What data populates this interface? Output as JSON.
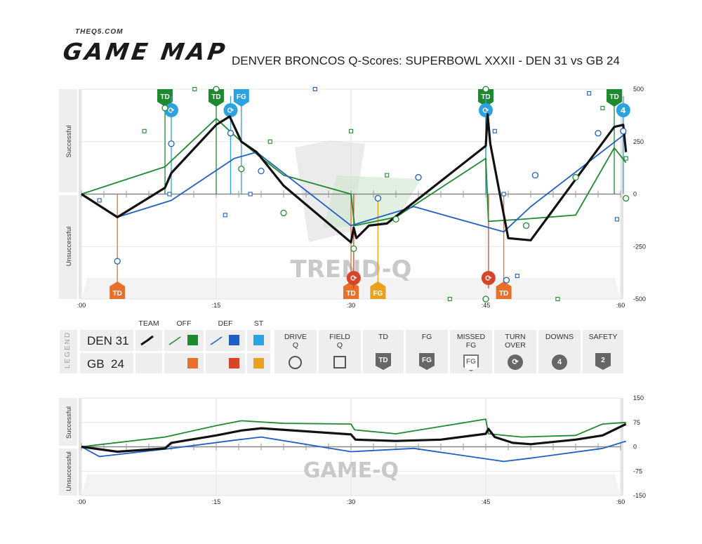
{
  "header": {
    "site": "THEQ5.COM",
    "logo": "GAME MAP",
    "title": "DENVER BRONCOS Q-Scores: SUPERBOWL XXXII - DEN 31 vs GB 24"
  },
  "colors": {
    "team": "#111111",
    "off": "#1e8a2e",
    "def": "#1f5fc4",
    "st": "#2aa3e0",
    "opp_off": "#e8702a",
    "opp_def": "#d6452a",
    "opp_st": "#e8a21c"
  },
  "chart_data": [
    {
      "type": "line",
      "watermark": "TREND-Q",
      "ylabel_top": "Successful",
      "ylabel_bottom": "Unsuccessful",
      "xlim": [
        0,
        60
      ],
      "ylim": [
        -500,
        500
      ],
      "x_ticks": [
        ":00",
        ":15",
        ":30",
        ":45",
        ":60"
      ],
      "y_ticks": [
        500,
        250,
        0,
        -250,
        -500
      ],
      "series": [
        {
          "name": "TEAM",
          "role": "team",
          "points": [
            [
              0,
              0
            ],
            [
              4,
              -110
            ],
            [
              9.3,
              30
            ],
            [
              10,
              100
            ],
            [
              15,
              330
            ],
            [
              16.5,
              370
            ],
            [
              17.8,
              250
            ],
            [
              19.5,
              200
            ],
            [
              22.5,
              40
            ],
            [
              30,
              -230
            ],
            [
              30.3,
              -160
            ],
            [
              30.6,
              -210
            ],
            [
              32,
              -150
            ],
            [
              34,
              -140
            ],
            [
              45,
              230
            ],
            [
              45.2,
              380
            ],
            [
              45.5,
              240
            ],
            [
              47.5,
              -210
            ],
            [
              50,
              -220
            ],
            [
              59.3,
              320
            ],
            [
              60.3,
              330
            ],
            [
              60.6,
              200
            ]
          ]
        },
        {
          "name": "OFF",
          "role": "off",
          "points": [
            [
              0,
              0
            ],
            [
              9.3,
              130
            ],
            [
              15,
              360
            ],
            [
              17.8,
              250
            ],
            [
              19.5,
              190
            ],
            [
              22.5,
              90
            ],
            [
              30,
              0
            ],
            [
              30.4,
              -150
            ],
            [
              35,
              -110
            ],
            [
              45,
              170
            ],
            [
              45.3,
              -130
            ],
            [
              49,
              -120
            ],
            [
              55,
              -100
            ],
            [
              59.3,
              220
            ],
            [
              60.6,
              150
            ]
          ]
        },
        {
          "name": "DEF",
          "role": "def",
          "points": [
            [
              0,
              0
            ],
            [
              4,
              -110
            ],
            [
              10,
              -30
            ],
            [
              17,
              170
            ],
            [
              19.5,
              200
            ],
            [
              30,
              -150
            ],
            [
              37,
              -60
            ],
            [
              47,
              -180
            ],
            [
              50,
              -60
            ],
            [
              60.6,
              290
            ]
          ]
        }
      ],
      "markers": [
        {
          "x": 9.3,
          "y": 410,
          "shape": "circle",
          "color": "off"
        },
        {
          "x": 10,
          "y": 240,
          "shape": "circle",
          "color": "def"
        },
        {
          "x": 7,
          "y": 300,
          "shape": "square",
          "color": "off"
        },
        {
          "x": 9.8,
          "y": 0,
          "shape": "square",
          "color": "def"
        },
        {
          "x": 12.6,
          "y": 500,
          "shape": "square",
          "color": "off"
        },
        {
          "x": 15,
          "y": 500,
          "shape": "circle",
          "color": "off"
        },
        {
          "x": 16.6,
          "y": 290,
          "shape": "circle",
          "color": "def"
        },
        {
          "x": 17.8,
          "y": 120,
          "shape": "circle",
          "color": "off"
        },
        {
          "x": 20,
          "y": 110,
          "shape": "circle",
          "color": "def"
        },
        {
          "x": 18.8,
          "y": 0,
          "shape": "square",
          "color": "def"
        },
        {
          "x": 21,
          "y": 250,
          "shape": "square",
          "color": "off"
        },
        {
          "x": 22.5,
          "y": -90,
          "shape": "circle",
          "color": "off"
        },
        {
          "x": 16,
          "y": -100,
          "shape": "square",
          "color": "def"
        },
        {
          "x": 2,
          "y": -30,
          "shape": "square",
          "color": "def"
        },
        {
          "x": 4,
          "y": -320,
          "shape": "circle",
          "color": "def"
        },
        {
          "x": 26,
          "y": 500,
          "shape": "square",
          "color": "def"
        },
        {
          "x": 30,
          "y": 300,
          "shape": "square",
          "color": "off"
        },
        {
          "x": 30.3,
          "y": -260,
          "shape": "circle",
          "color": "off"
        },
        {
          "x": 33,
          "y": -20,
          "shape": "circle",
          "color": "def"
        },
        {
          "x": 34,
          "y": 90,
          "shape": "square",
          "color": "off"
        },
        {
          "x": 35,
          "y": -120,
          "shape": "circle",
          "color": "off"
        },
        {
          "x": 37.5,
          "y": 80,
          "shape": "circle",
          "color": "def"
        },
        {
          "x": 41,
          "y": -500,
          "shape": "square",
          "color": "off"
        },
        {
          "x": 45,
          "y": 500,
          "shape": "circle",
          "color": "off"
        },
        {
          "x": 45,
          "y": -500,
          "shape": "circle",
          "color": "off"
        },
        {
          "x": 46,
          "y": 300,
          "shape": "square",
          "color": "def"
        },
        {
          "x": 47.3,
          "y": -410,
          "shape": "circle",
          "color": "def"
        },
        {
          "x": 47,
          "y": 0,
          "shape": "square",
          "color": "def"
        },
        {
          "x": 48.5,
          "y": -390,
          "shape": "square",
          "color": "def"
        },
        {
          "x": 49.5,
          "y": -150,
          "shape": "circle",
          "color": "off"
        },
        {
          "x": 50.5,
          "y": 90,
          "shape": "circle",
          "color": "def"
        },
        {
          "x": 53,
          "y": -500,
          "shape": "square",
          "color": "off"
        },
        {
          "x": 55,
          "y": 80,
          "shape": "circle",
          "color": "off"
        },
        {
          "x": 56.5,
          "y": 480,
          "shape": "square",
          "color": "def"
        },
        {
          "x": 57.5,
          "y": 290,
          "shape": "circle",
          "color": "def"
        },
        {
          "x": 58,
          "y": 410,
          "shape": "square",
          "color": "off"
        },
        {
          "x": 59.6,
          "y": -120,
          "shape": "square",
          "color": "def"
        },
        {
          "x": 60.3,
          "y": 300,
          "shape": "circle",
          "color": "def"
        },
        {
          "x": 60.6,
          "y": -20,
          "shape": "circle",
          "color": "off"
        },
        {
          "x": 60.6,
          "y": 170,
          "shape": "square",
          "color": "off"
        }
      ],
      "events": [
        {
          "x": 9.3,
          "label": "TD",
          "side": "top",
          "color": "off"
        },
        {
          "x": 10,
          "label": "turnover",
          "side": "top",
          "color": "st"
        },
        {
          "x": 15,
          "label": "TD",
          "side": "top",
          "color": "off"
        },
        {
          "x": 16.6,
          "label": "turnover",
          "side": "top",
          "color": "st"
        },
        {
          "x": 17.8,
          "label": "FG",
          "side": "top",
          "color": "st"
        },
        {
          "x": 45,
          "label": "TD",
          "side": "top",
          "color": "off"
        },
        {
          "x": 45,
          "label": "turnover",
          "side": "top",
          "color": "st"
        },
        {
          "x": 59.3,
          "label": "TD",
          "side": "top",
          "color": "off"
        },
        {
          "x": 60.3,
          "label": "downs",
          "side": "top",
          "color": "st"
        },
        {
          "x": 4,
          "label": "TD",
          "side": "bottom",
          "color": "opp_off"
        },
        {
          "x": 30,
          "label": "TD",
          "side": "bottom",
          "color": "opp_off"
        },
        {
          "x": 30.3,
          "label": "turnover",
          "side": "bottom",
          "color": "opp_def"
        },
        {
          "x": 33,
          "label": "FG",
          "side": "bottom",
          "color": "opp_st"
        },
        {
          "x": 45.3,
          "label": "turnover",
          "side": "bottom",
          "color": "opp_def"
        },
        {
          "x": 47,
          "label": "TD",
          "side": "bottom",
          "color": "opp_off"
        }
      ]
    },
    {
      "type": "line",
      "watermark": "GAME-Q",
      "ylabel_top": "Successful",
      "ylabel_bottom": "Unsuccessful",
      "xlim": [
        0,
        60
      ],
      "ylim": [
        -150,
        150
      ],
      "x_ticks": [
        ":00",
        ":15",
        ":30",
        ":45",
        ":60"
      ],
      "y_ticks": [
        150,
        75,
        0,
        -75,
        -150
      ],
      "series": [
        {
          "name": "TEAM",
          "role": "team",
          "points": [
            [
              0,
              0
            ],
            [
              4,
              -15
            ],
            [
              9.3,
              -5
            ],
            [
              10,
              12
            ],
            [
              15,
              35
            ],
            [
              17.8,
              50
            ],
            [
              20,
              57
            ],
            [
              30,
              38
            ],
            [
              30.5,
              22
            ],
            [
              35,
              18
            ],
            [
              40,
              22
            ],
            [
              45,
              40
            ],
            [
              45.3,
              55
            ],
            [
              46,
              30
            ],
            [
              48,
              12
            ],
            [
              50,
              8
            ],
            [
              55,
              22
            ],
            [
              58,
              35
            ],
            [
              60.6,
              70
            ]
          ]
        },
        {
          "name": "OFF",
          "role": "off",
          "points": [
            [
              0,
              0
            ],
            [
              9.3,
              30
            ],
            [
              15,
              65
            ],
            [
              17.8,
              80
            ],
            [
              22.5,
              72
            ],
            [
              30,
              70
            ],
            [
              30.4,
              52
            ],
            [
              35,
              40
            ],
            [
              45,
              85
            ],
            [
              45.3,
              40
            ],
            [
              49,
              30
            ],
            [
              55,
              35
            ],
            [
              58,
              70
            ],
            [
              60.6,
              75
            ]
          ]
        },
        {
          "name": "DEF",
          "role": "def",
          "points": [
            [
              0,
              0
            ],
            [
              2,
              -30
            ],
            [
              10,
              -5
            ],
            [
              17,
              20
            ],
            [
              20,
              30
            ],
            [
              30,
              -15
            ],
            [
              37,
              -5
            ],
            [
              47,
              -45
            ],
            [
              50,
              -35
            ],
            [
              58,
              -5
            ],
            [
              60.6,
              17
            ]
          ]
        }
      ]
    }
  ],
  "legend": {
    "side_label": "LEGEND",
    "team1": "DEN 31",
    "team2": "GB  24",
    "col_headers": [
      "TEAM",
      "OFF",
      "DEF",
      "ST"
    ],
    "icons": [
      {
        "label": "DRIVE\nQ",
        "icon": "circle-icon"
      },
      {
        "label": "FIELD\nQ",
        "icon": "square-icon"
      },
      {
        "label": "TD",
        "icon": "td-badge-icon",
        "text": "TD"
      },
      {
        "label": "FG",
        "icon": "fg-badge-icon",
        "text": "FG"
      },
      {
        "label": "MISSED\nFG",
        "icon": "missed-fg-badge-icon",
        "text": "FG"
      },
      {
        "label": "TURN\nOVER",
        "icon": "turnover-icon",
        "text": "⟳"
      },
      {
        "label": "DOWNS",
        "icon": "downs-icon",
        "text": "4"
      },
      {
        "label": "SAFETY",
        "icon": "safety-badge-icon",
        "text": "2"
      }
    ]
  }
}
